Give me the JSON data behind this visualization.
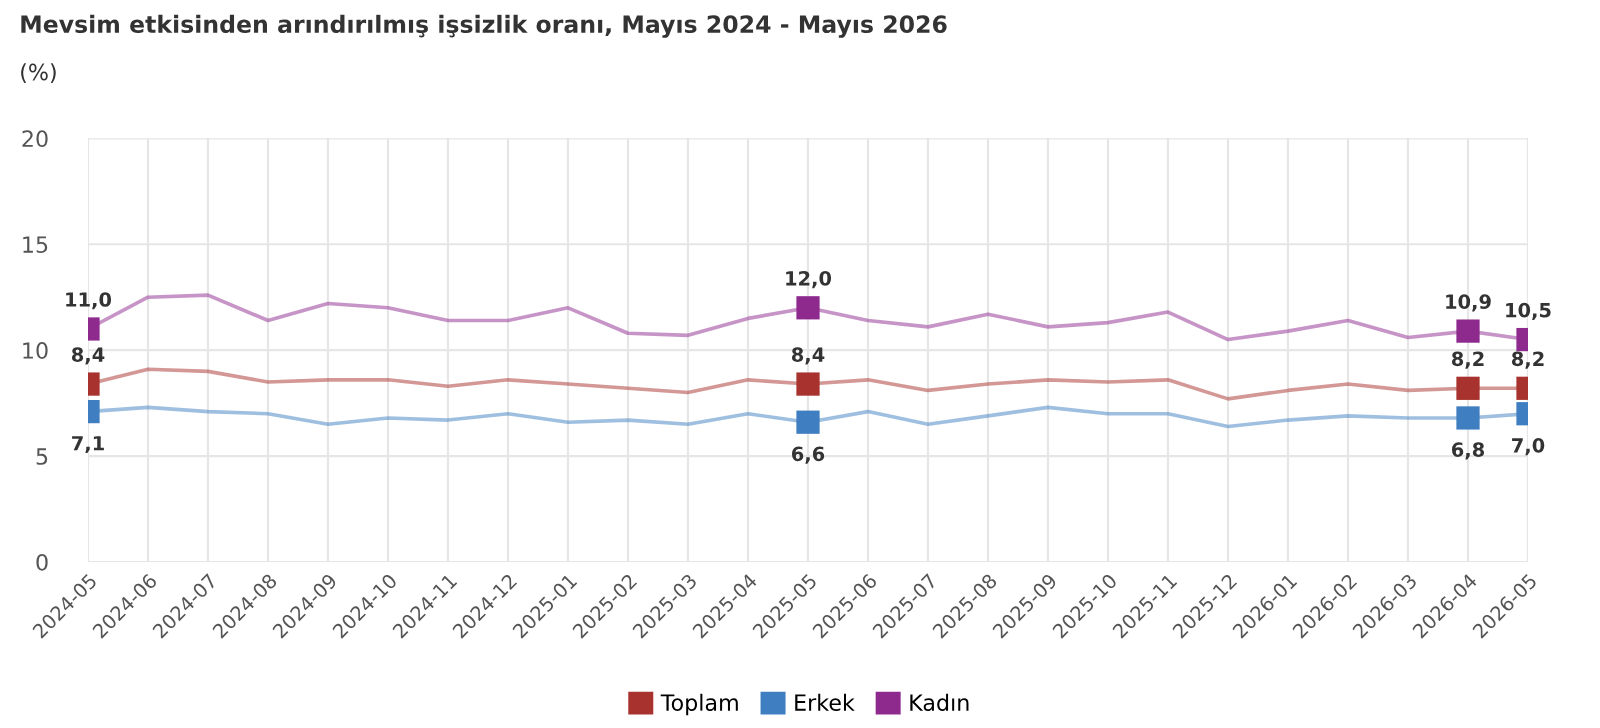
{
  "chart_data": {
    "type": "line",
    "title": "Mevsim etkisinden arındırılmış işsizlik oranı, Mayıs 2024 - Mayıs 2026",
    "ylabel": "(%)",
    "categories": [
      "2024-05",
      "2024-06",
      "2024-07",
      "2024-08",
      "2024-09",
      "2024-10",
      "2024-11",
      "2024-12",
      "2025-01",
      "2025-02",
      "2025-03",
      "2025-04",
      "2025-05",
      "2025-06",
      "2025-07",
      "2025-08",
      "2025-09",
      "2025-10",
      "2025-11",
      "2025-12",
      "2026-01",
      "2026-02",
      "2026-03",
      "2026-04",
      "2026-05"
    ],
    "series": [
      {
        "name": "Toplam",
        "color": "#a8322d",
        "values": [
          8.4,
          9.1,
          9.0,
          8.5,
          8.6,
          8.6,
          8.3,
          8.6,
          8.4,
          8.2,
          8.0,
          8.6,
          8.4,
          8.6,
          8.1,
          8.4,
          8.6,
          8.5,
          8.6,
          7.7,
          8.1,
          8.4,
          8.1,
          8.2,
          8.2
        ]
      },
      {
        "name": "Erkek",
        "color": "#3f7fc1",
        "values": [
          7.1,
          7.3,
          7.1,
          7.0,
          6.5,
          6.8,
          6.7,
          7.0,
          6.6,
          6.7,
          6.5,
          7.0,
          6.6,
          7.1,
          6.5,
          6.9,
          7.3,
          7.0,
          7.0,
          6.4,
          6.7,
          6.9,
          6.8,
          6.8,
          7.0
        ]
      },
      {
        "name": "Kadın",
        "color": "#8e2a8e",
        "values": [
          11.0,
          12.5,
          12.6,
          11.4,
          12.2,
          12.0,
          11.4,
          11.4,
          12.0,
          10.8,
          10.7,
          11.5,
          12.0,
          11.4,
          11.1,
          11.7,
          11.1,
          11.3,
          11.8,
          10.5,
          10.9,
          11.4,
          10.6,
          10.9,
          10.5
        ]
      }
    ],
    "annotations": [
      {
        "text": "11,0",
        "x": "2024-05",
        "y": 11.0
      },
      {
        "text": "8,4",
        "x": "2024-05",
        "y": 8.4
      },
      {
        "text": "7,1",
        "x": "2024-05",
        "y": 7.1
      },
      {
        "text": "12,0",
        "x": "2025-05",
        "y": 12.0
      },
      {
        "text": "8,4",
        "x": "2025-05",
        "y": 8.4
      },
      {
        "text": "6,6",
        "x": "2025-05",
        "y": 6.6
      },
      {
        "text": "10,9",
        "x": "2026-04",
        "y": 10.9
      },
      {
        "text": "8,2",
        "x": "2026-04",
        "y": 8.2
      },
      {
        "text": "6,8",
        "x": "2026-04",
        "y": 6.8
      },
      {
        "text": "10,5",
        "x": "2026-05",
        "y": 10.5
      },
      {
        "text": "8,2",
        "x": "2026-05",
        "y": 8.2
      },
      {
        "text": "7,0",
        "x": "2026-05",
        "y": 7.0
      }
    ],
    "ylim": [
      0,
      20
    ],
    "yticks": [
      0,
      5,
      10,
      15,
      20
    ],
    "grid": true,
    "legend": "bottom",
    "line_style": "solid"
  }
}
